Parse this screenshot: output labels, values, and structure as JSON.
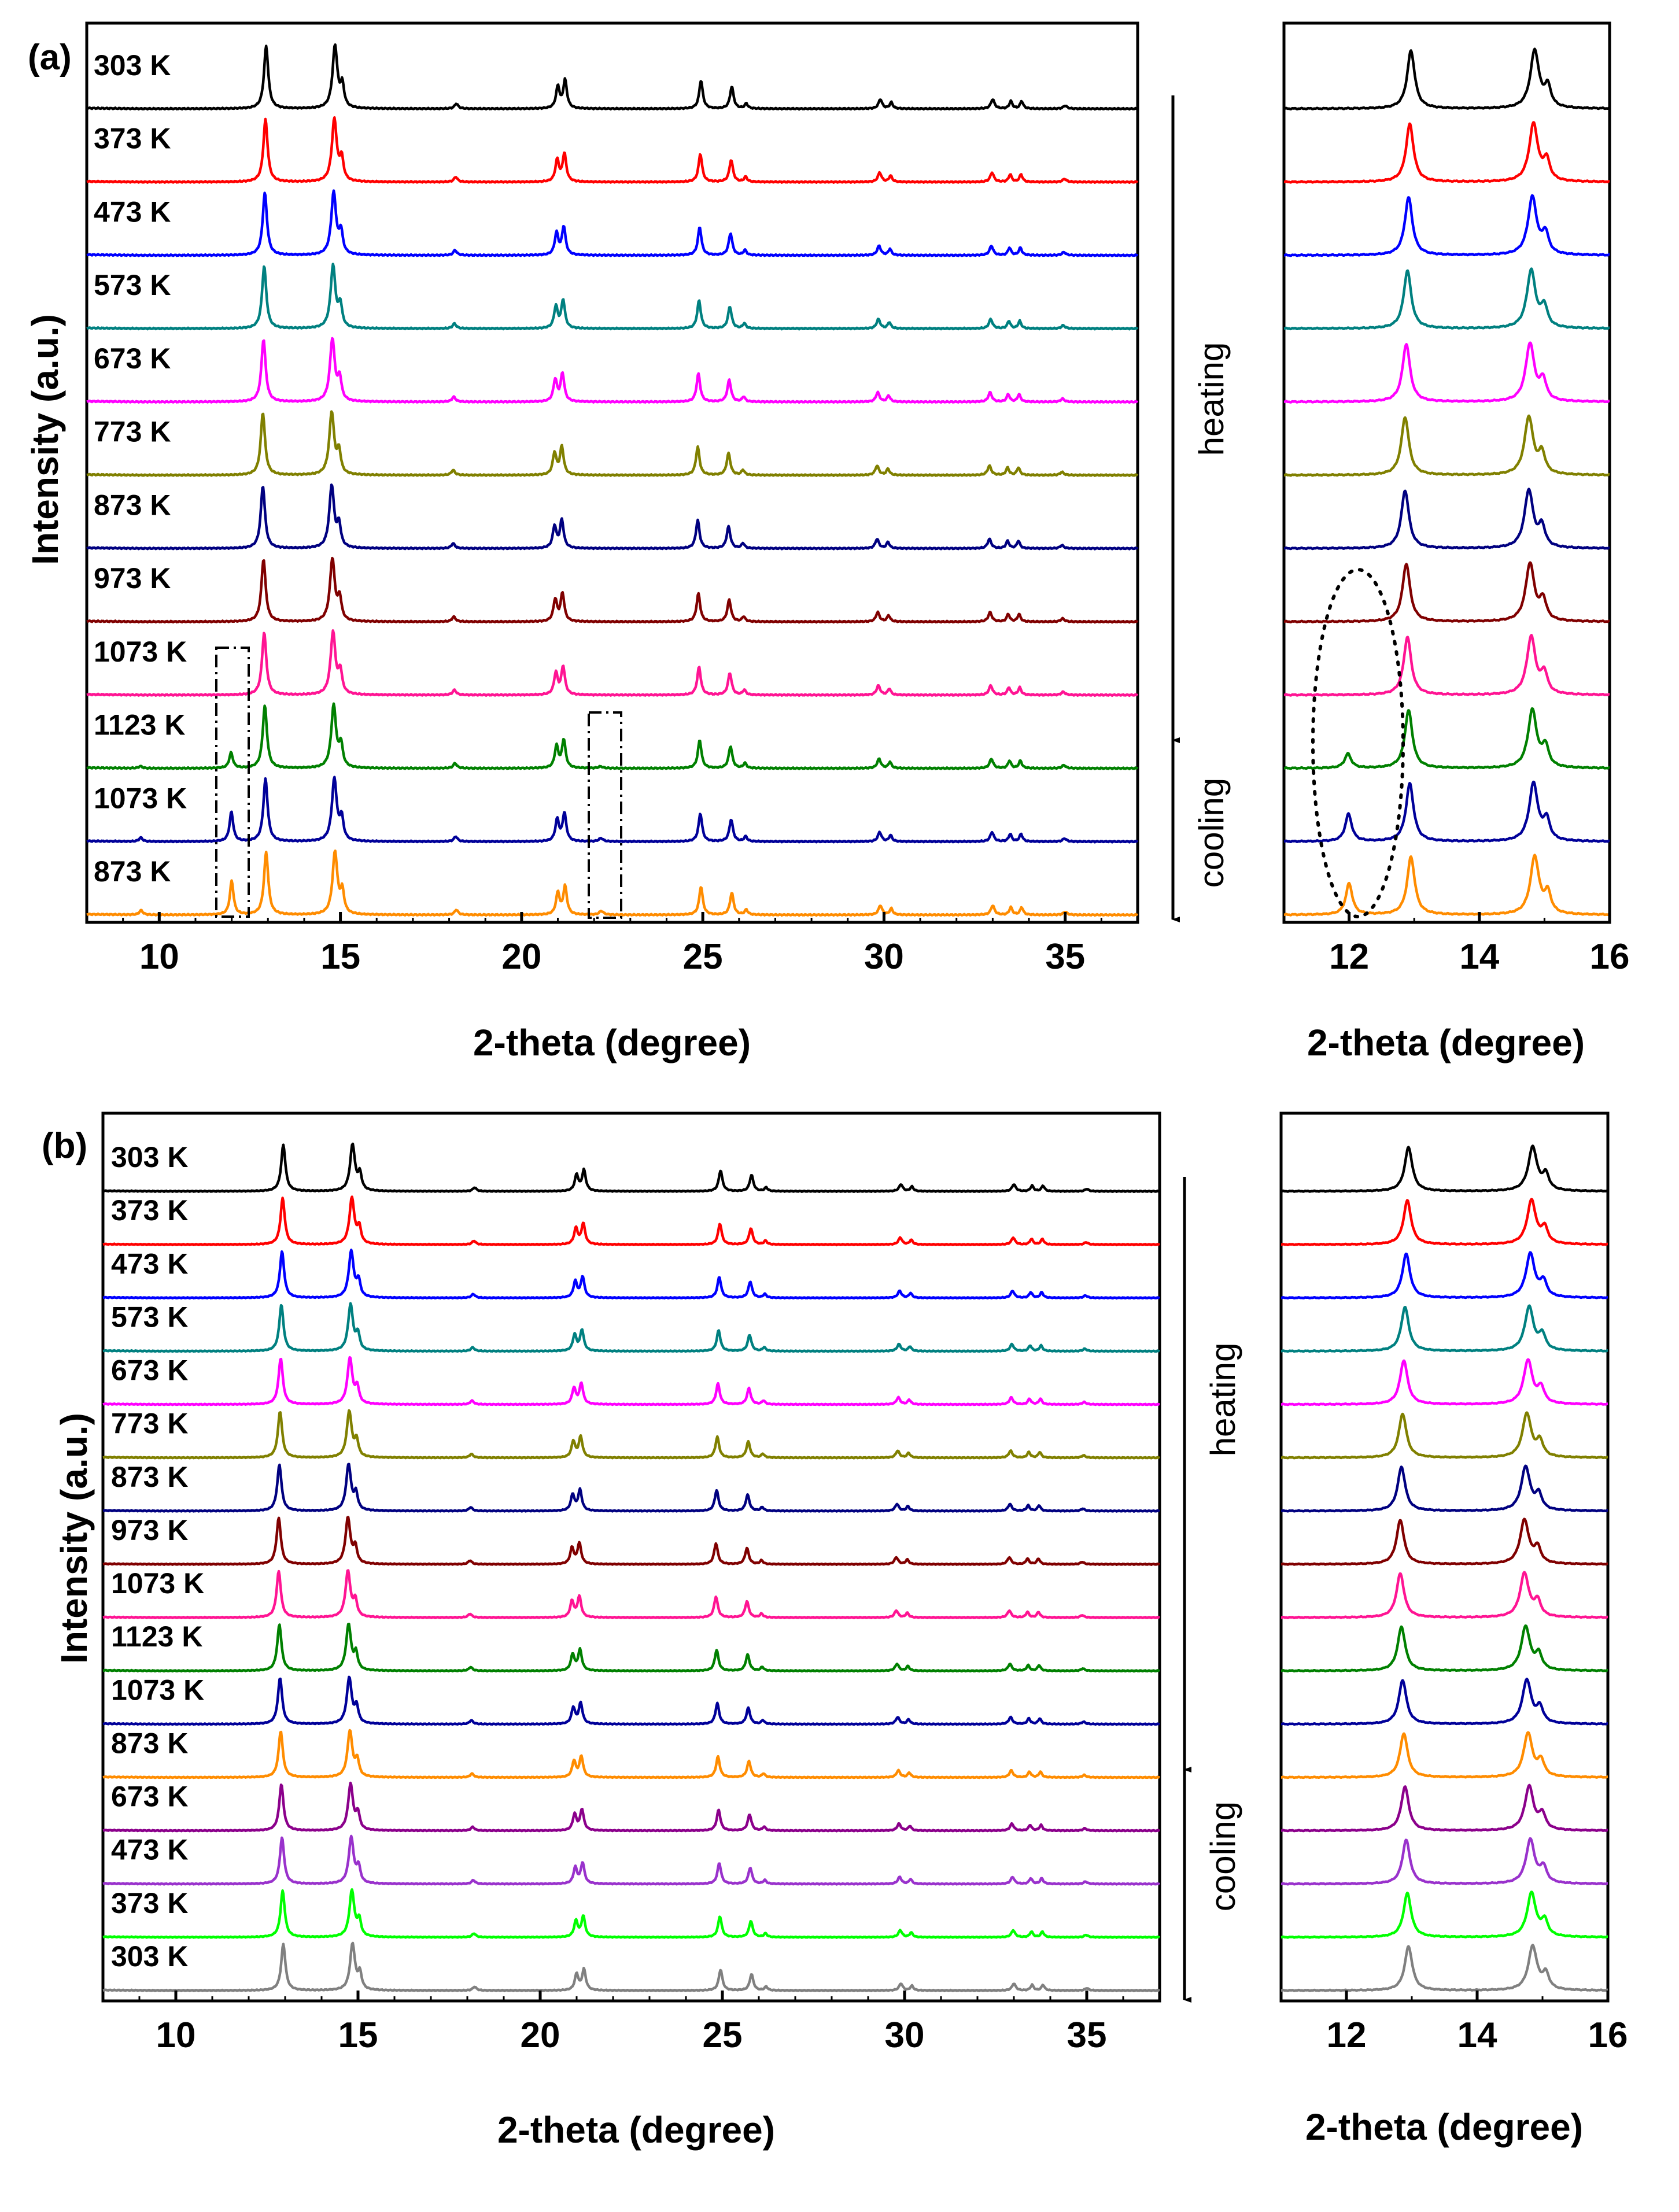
{
  "figure": {
    "x_axis_title": "2-theta (degree)",
    "y_axis_title": "Intensity (a.u.)"
  },
  "chart_data": [
    {
      "type": "line",
      "panel": "(a)",
      "xlabel": "2-theta (degree)",
      "ylabel": "Intensity (a.u.)",
      "xlim": [
        8,
        37
      ],
      "xticks": [
        10,
        15,
        20,
        25,
        30,
        35
      ],
      "inset": {
        "xlabel": "2-theta (degree)",
        "xlim": [
          11,
          16
        ],
        "xticks": [
          12,
          14,
          16
        ]
      },
      "series": [
        {
          "name": "303 K",
          "color": "#000000",
          "phase": "heating"
        },
        {
          "name": "373 K",
          "color": "#ff0000",
          "phase": "heating"
        },
        {
          "name": "473 K",
          "color": "#0000ff",
          "phase": "heating"
        },
        {
          "name": "573 K",
          "color": "#008080",
          "phase": "heating"
        },
        {
          "name": "673 K",
          "color": "#ff00ff",
          "phase": "heating"
        },
        {
          "name": "773 K",
          "color": "#808000",
          "phase": "heating"
        },
        {
          "name": "873 K",
          "color": "#000080",
          "phase": "heating"
        },
        {
          "name": "973 K",
          "color": "#800000",
          "phase": "heating"
        },
        {
          "name": "1073 K",
          "color": "#ff1493",
          "phase": "heating"
        },
        {
          "name": "1123 K",
          "color": "#008000",
          "phase": "heating"
        },
        {
          "name": "1073 K",
          "color": "#000099",
          "phase": "cooling"
        },
        {
          "name": "873 K",
          "color": "#ff8c00",
          "phase": "cooling"
        }
      ],
      "annotations": {
        "heating": "heating",
        "cooling": "cooling"
      }
    },
    {
      "type": "line",
      "panel": "(b)",
      "xlabel": "2-theta (degree)",
      "ylabel": "Intensity (a.u.)",
      "xlim": [
        8,
        37
      ],
      "xticks": [
        10,
        15,
        20,
        25,
        30,
        35
      ],
      "inset": {
        "xlabel": "2-theta (degree)",
        "xlim": [
          11,
          16
        ],
        "xticks": [
          12,
          14,
          16
        ]
      },
      "series": [
        {
          "name": "303 K",
          "color": "#000000",
          "phase": "heating"
        },
        {
          "name": "373 K",
          "color": "#ff0000",
          "phase": "heating"
        },
        {
          "name": "473 K",
          "color": "#0000ff",
          "phase": "heating"
        },
        {
          "name": "573 K",
          "color": "#008080",
          "phase": "heating"
        },
        {
          "name": "673 K",
          "color": "#ff00ff",
          "phase": "heating"
        },
        {
          "name": "773 K",
          "color": "#808000",
          "phase": "heating"
        },
        {
          "name": "873 K",
          "color": "#000080",
          "phase": "heating"
        },
        {
          "name": "973 K",
          "color": "#800000",
          "phase": "heating"
        },
        {
          "name": "1073 K",
          "color": "#ff1493",
          "phase": "heating"
        },
        {
          "name": "1123 K",
          "color": "#008000",
          "phase": "heating"
        },
        {
          "name": "1073 K",
          "color": "#000099",
          "phase": "cooling"
        },
        {
          "name": "873 K",
          "color": "#ff8c00",
          "phase": "cooling"
        },
        {
          "name": "673 K",
          "color": "#8b008b",
          "phase": "cooling"
        },
        {
          "name": "473 K",
          "color": "#9932cc",
          "phase": "cooling"
        },
        {
          "name": "373 K",
          "color": "#00ff00",
          "phase": "cooling"
        },
        {
          "name": "303 K",
          "color": "#808080",
          "phase": "cooling"
        }
      ],
      "annotations": {
        "heating": "heating",
        "cooling": "cooling"
      }
    }
  ]
}
